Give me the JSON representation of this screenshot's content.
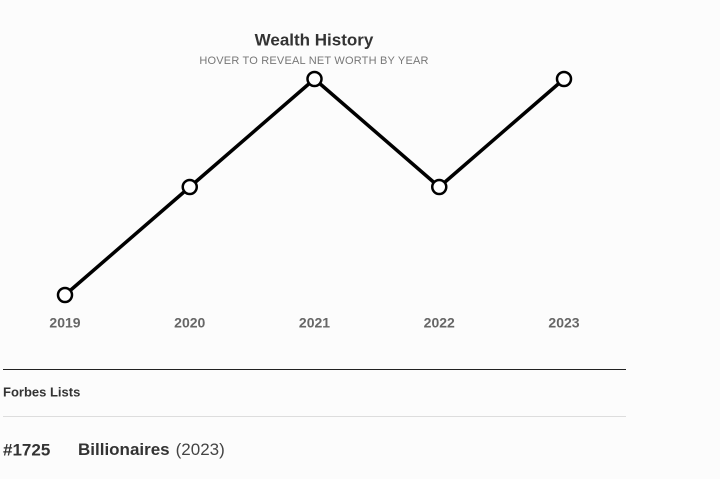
{
  "chart_data": {
    "type": "line",
    "title": "Wealth History",
    "subtitle": "HOVER TO REVEAL NET WORTH BY YEAR",
    "categories": [
      "2019",
      "2020",
      "2021",
      "2022",
      "2023"
    ],
    "values": [
      1,
      2,
      3,
      2,
      3
    ],
    "color": "#000000",
    "ylim": [
      1,
      3
    ]
  },
  "forbes_lists": {
    "title": "Forbes Lists",
    "entries": [
      {
        "rank": "#1725",
        "list": "Billionaires",
        "year": "(2023)"
      }
    ]
  }
}
